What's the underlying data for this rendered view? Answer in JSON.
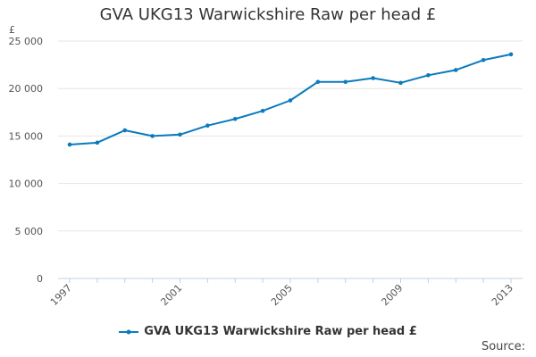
{
  "title": "GVA UKG13 Warwickshire Raw per head £",
  "source_label": "Source:",
  "colors": {
    "series": "#0b7bbd",
    "grid": "#e6e6e6",
    "axis": "#c0d0e0",
    "text": "#333333"
  },
  "chart_data": {
    "type": "line",
    "title": "GVA UKG13 Warwickshire Raw per head £",
    "xlabel": "",
    "ylabel": "£",
    "ylim": [
      0,
      25000
    ],
    "xlim": [
      1997,
      2013
    ],
    "grid": true,
    "legend_position": "bottom",
    "x": [
      1997,
      1998,
      1999,
      2000,
      2001,
      2002,
      2003,
      2004,
      2005,
      2006,
      2007,
      2008,
      2009,
      2010,
      2011,
      2012,
      2013
    ],
    "x_tick_labels": [
      "1997",
      "2001",
      "2005",
      "2009",
      "2013"
    ],
    "y_tick_labels": [
      "0",
      "5 000",
      "10 000",
      "15 000",
      "20 000",
      "25 000"
    ],
    "y_ticks": [
      0,
      5000,
      10000,
      15000,
      20000,
      25000
    ],
    "series": [
      {
        "name": "GVA UKG13 Warwickshire Raw per head £",
        "values": [
          14100,
          14300,
          15600,
          15000,
          15150,
          16100,
          16800,
          17650,
          18750,
          20700,
          20700,
          21100,
          20600,
          21400,
          21950,
          23000,
          23600
        ]
      }
    ]
  }
}
